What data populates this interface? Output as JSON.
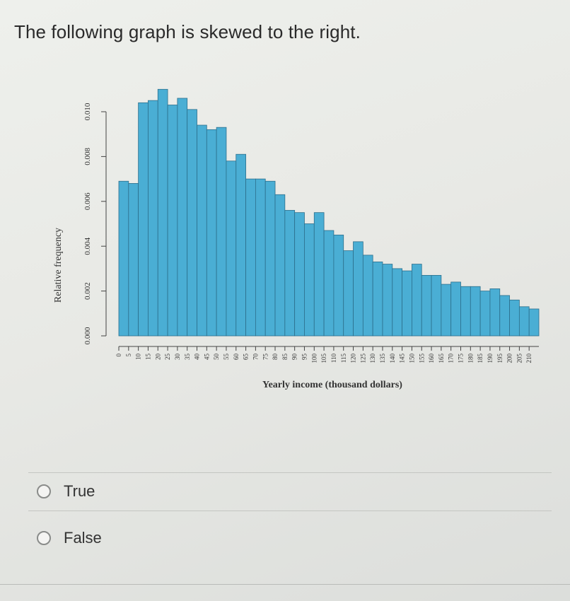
{
  "question": {
    "text": "The following graph is skewed to the right."
  },
  "options": [
    {
      "label": "True"
    },
    {
      "label": "False"
    }
  ],
  "colors": {
    "bar_fill": "#4aaed4",
    "bar_stroke": "#2c6f8c",
    "axis": "#444444"
  },
  "chart_data": {
    "type": "bar",
    "title": "",
    "xlabel": "Yearly income (thousand dollars)",
    "ylabel": "Relative frequency",
    "ylim": [
      0,
      0.01
    ],
    "yticks": [
      "0.000",
      "0.002",
      "0.004",
      "0.006",
      "0.008",
      "0.010"
    ],
    "categories": [
      "0",
      "5",
      "10",
      "15",
      "20",
      "25",
      "30",
      "35",
      "40",
      "45",
      "50",
      "55",
      "60",
      "65",
      "70",
      "75",
      "80",
      "85",
      "90",
      "95",
      "100",
      "105",
      "110",
      "115",
      "120",
      "125",
      "130",
      "135",
      "140",
      "145",
      "150",
      "155",
      "160",
      "165",
      "170",
      "175",
      "180",
      "185",
      "190",
      "195",
      "200",
      "205",
      "210"
    ],
    "values": [
      0.0069,
      0.0068,
      0.0104,
      0.0105,
      0.011,
      0.0103,
      0.0106,
      0.0101,
      0.0094,
      0.0092,
      0.0093,
      0.0078,
      0.0081,
      0.007,
      0.007,
      0.0069,
      0.0063,
      0.0056,
      0.0055,
      0.005,
      0.0055,
      0.0047,
      0.0045,
      0.0038,
      0.0042,
      0.0036,
      0.0033,
      0.0032,
      0.003,
      0.0029,
      0.0032,
      0.0027,
      0.0027,
      0.0023,
      0.0024,
      0.0022,
      0.0022,
      0.002,
      0.0021,
      0.0018,
      0.0016,
      0.0013,
      0.0012
    ]
  }
}
